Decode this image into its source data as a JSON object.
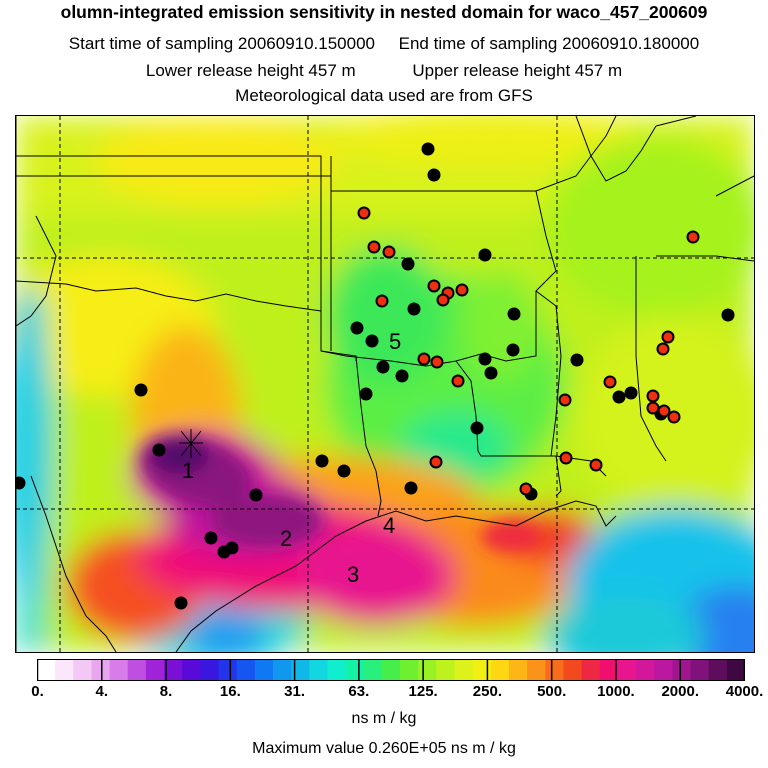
{
  "title": "olumn-integrated emission sensitivity in nested domain for waco_457_200609",
  "start_label": "Start time of sampling 20060910.150000",
  "end_label": "End time of sampling 20060910.180000",
  "lower_label": "Lower release height  457 m",
  "upper_label": "Upper release height  457 m",
  "met_label": "Meteorological data used are from GFS",
  "region_labels": [
    "1",
    "2",
    "3",
    "4",
    "5"
  ],
  "colorbar": {
    "ticks": [
      "0.",
      "4.",
      "8.",
      "16.",
      "31.",
      "63.",
      "125.",
      "250.",
      "500.",
      "1000.",
      "2000.",
      "4000."
    ],
    "colors": [
      "#ffffff",
      "#fbe6fb",
      "#f3c8f5",
      "#e8a6ef",
      "#d77ce8",
      "#bf4fe0",
      "#a023d8",
      "#7b0fd6",
      "#5a0ad8",
      "#3a17e0",
      "#2335ea",
      "#1556f0",
      "#0f79f3",
      "#1098ef",
      "#10b8e8",
      "#12d6e0",
      "#10eecd",
      "#14f2a8",
      "#28f07c",
      "#46ee4c",
      "#6ef030",
      "#98f224",
      "#bdf21c",
      "#dcf21a",
      "#f1f012",
      "#fdd812",
      "#fdb616",
      "#fb931a",
      "#f86d1c",
      "#f24a1e",
      "#ee2842",
      "#f00f6e",
      "#e8158e",
      "#d3179a",
      "#bc17a0",
      "#a0168f",
      "#80127c",
      "#5e0c5c",
      "#3e0840"
    ],
    "units": "ns m / kg",
    "max_label": "Maximum value  0.260E+05 ns m / kg"
  }
}
